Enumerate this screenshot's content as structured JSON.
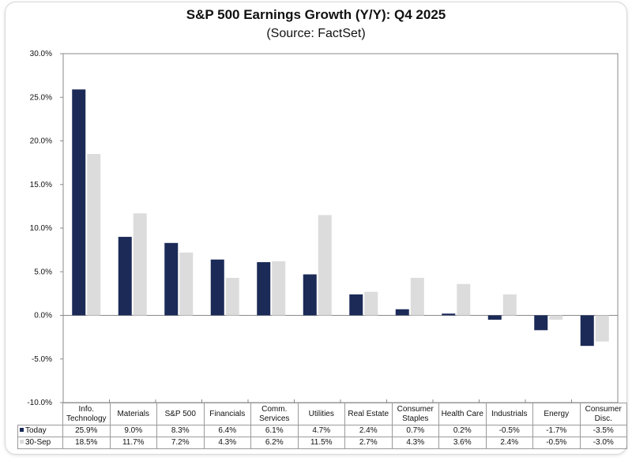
{
  "chart_data": {
    "type": "bar",
    "title": "S&P 500 Earnings Growth (Y/Y): Q4 2025",
    "subtitle": "(Source: FactSet)",
    "xlabel": "",
    "ylabel": "",
    "ylim": [
      -10,
      30
    ],
    "yticks": [
      "30.0%",
      "25.0%",
      "20.0%",
      "15.0%",
      "10.0%",
      "5.0%",
      "0.0%",
      "-5.0%",
      "-10.0%"
    ],
    "ytick_values": [
      30,
      25,
      20,
      15,
      10,
      5,
      0,
      -5,
      -10
    ],
    "grid": false,
    "legend": "table-bottom",
    "categories": [
      "Info. Technology",
      "Materials",
      "S&P 500",
      "Financials",
      "Comm. Services",
      "Utilities",
      "Real Estate",
      "Consumer Staples",
      "Health Care",
      "Industrials",
      "Energy",
      "Consumer Disc."
    ],
    "series": [
      {
        "name": "Today",
        "color": "#1b2a57",
        "values": [
          25.9,
          9.0,
          8.3,
          6.4,
          6.1,
          4.7,
          2.4,
          0.7,
          0.2,
          -0.5,
          -1.7,
          -3.5
        ],
        "labels": [
          "25.9%",
          "9.0%",
          "8.3%",
          "6.4%",
          "6.1%",
          "4.7%",
          "2.4%",
          "0.7%",
          "0.2%",
          "-0.5%",
          "-1.7%",
          "-3.5%"
        ]
      },
      {
        "name": "30-Sep",
        "color": "#dcdcdc",
        "values": [
          18.5,
          11.7,
          7.2,
          4.3,
          6.2,
          11.5,
          2.7,
          4.3,
          3.6,
          2.4,
          -0.5,
          -3.0
        ],
        "labels": [
          "18.5%",
          "11.7%",
          "7.2%",
          "4.3%",
          "6.2%",
          "11.5%",
          "2.7%",
          "4.3%",
          "3.6%",
          "2.4%",
          "-0.5%",
          "-3.0%"
        ]
      }
    ]
  }
}
